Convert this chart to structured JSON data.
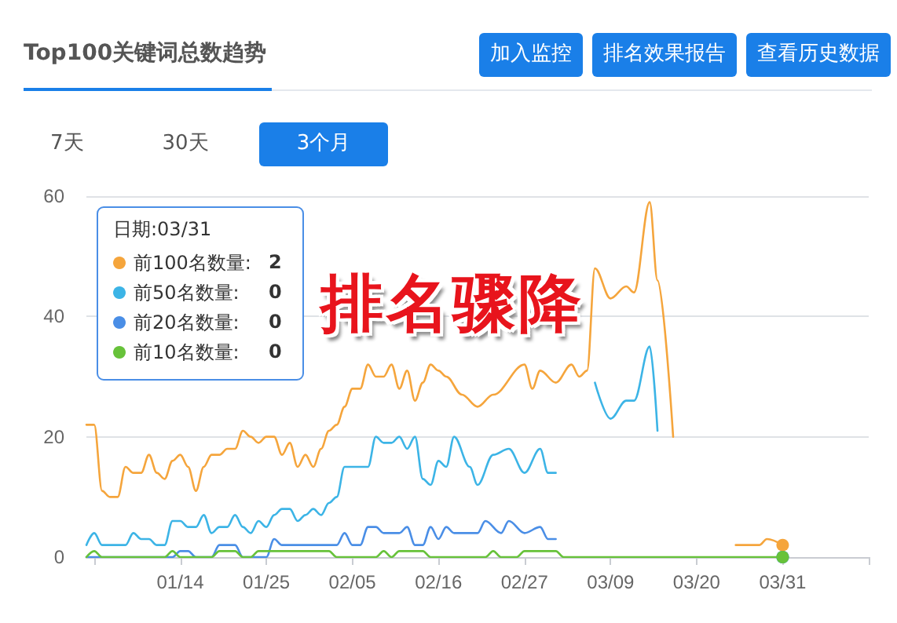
{
  "chart_data": {
    "type": "line",
    "title": "Top100关键词总数趋势",
    "legend_title": "日期:03/31",
    "annotations": [
      "加入监控",
      "排名效果报告",
      "查看历史数据",
      "7天",
      "30天",
      "3个月",
      "排名骤降",
      "2",
      "0",
      "0",
      "0"
    ],
    "xlim": [
      "--01-02",
      "--04-11"
    ],
    "xticks": [
      {
        "value": "--01-03",
        "label": null
      },
      {
        "value": "--01-14",
        "label": "01/14"
      },
      {
        "value": "--01-25",
        "label": "01/25"
      },
      {
        "value": "--02-05",
        "label": "02/05"
      },
      {
        "value": "--02-16",
        "label": "02/16"
      },
      {
        "value": "--02-27",
        "label": "02/27"
      },
      {
        "value": "--03-09",
        "label": "03/09"
      },
      {
        "value": "--03-20",
        "label": "03/20"
      },
      {
        "value": "--03-31",
        "label": "03/31"
      },
      {
        "value": "--04-11",
        "label": null
      }
    ],
    "ylim": [
      0,
      60
    ],
    "yticks": [
      0,
      20,
      40,
      60
    ],
    "grid": "y",
    "legend": "top left",
    "series": [
      {
        "name": "前100名数量:",
        "color": "#f5a53c",
        "x": [
          "--01-02",
          "--01-03",
          "--01-04",
          "--01-05",
          "--01-06",
          "--01-07",
          "--01-08",
          "--01-09",
          "--01-10",
          "--01-11",
          "--01-12",
          "--01-13",
          "--01-14",
          "--01-15",
          "--01-16",
          "--01-17",
          "--01-18",
          "--01-19",
          "--01-20",
          "--01-21",
          "--01-22",
          "--01-23",
          "--01-24",
          "--01-25",
          "--01-26",
          "--01-27",
          "--01-28",
          "--01-29",
          "--01-30",
          "--01-31",
          "--02-01",
          "--02-02",
          "--02-03",
          "--02-04",
          "--02-05",
          "--02-06",
          "--02-07",
          "--02-08",
          "--02-09",
          "--02-10",
          "--02-11",
          "--02-12",
          "--02-13",
          "--02-14",
          "--02-15",
          "--02-16",
          "--02-17",
          "--02-19",
          "--02-21",
          "--02-23",
          "--02-27",
          "--02-28",
          "--02-29",
          "--03-02",
          "--03-04",
          "--03-05",
          "--03-06",
          "--03-07",
          "--03-09",
          "--03-11",
          "--03-12",
          "--03-14",
          "--03-15",
          "--03-17",
          "--03-18",
          "--03-25",
          "--03-28",
          "--03-29",
          "--03-31"
        ],
        "values": [
          22,
          22,
          11,
          10,
          10,
          15,
          14,
          14,
          17,
          14,
          13,
          16,
          17,
          15,
          11,
          15,
          17,
          17,
          18,
          18,
          21,
          20,
          19,
          20,
          20,
          17,
          19,
          15,
          17,
          15,
          18,
          21,
          22,
          25,
          28,
          28,
          32,
          30,
          30,
          32,
          28,
          31,
          26,
          29,
          32,
          31,
          30,
          27,
          25,
          27,
          32,
          28,
          31,
          29,
          32,
          30,
          31,
          48,
          43,
          45,
          44,
          59,
          46,
          20,
          null,
          2,
          2,
          3,
          2
        ]
      },
      {
        "name": "前50名数量:",
        "color": "#3cb4e6",
        "x": [
          "--01-02",
          "--01-03",
          "--01-04",
          "--01-07",
          "--01-08",
          "--01-09",
          "--01-10",
          "--01-11",
          "--01-12",
          "--01-13",
          "--01-14",
          "--01-15",
          "--01-16",
          "--01-17",
          "--01-18",
          "--01-19",
          "--01-20",
          "--01-21",
          "--01-22",
          "--01-23",
          "--01-24",
          "--01-25",
          "--01-26",
          "--01-27",
          "--01-28",
          "--01-29",
          "--01-30",
          "--01-31",
          "--02-01",
          "--02-02",
          "--02-03",
          "--02-04",
          "--02-05",
          "--02-07",
          "--02-08",
          "--02-09",
          "--02-10",
          "--02-11",
          "--02-12",
          "--02-13",
          "--02-14",
          "--02-15",
          "--02-16",
          "--02-17",
          "--02-18",
          "--02-20",
          "--02-21",
          "--02-23",
          "--02-25",
          "--02-27",
          "--02-29",
          "--03-01",
          "--03-02",
          "--03-03",
          "--03-07",
          "--03-09",
          "--03-11",
          "--03-12",
          "--03-14",
          "--03-15",
          "--03-16",
          "--03-31"
        ],
        "values": [
          2,
          4,
          2,
          2,
          4,
          3,
          3,
          2,
          2,
          6,
          6,
          5,
          5,
          7,
          4,
          5,
          5,
          7,
          5,
          4,
          6,
          5,
          7,
          8,
          8,
          6,
          7,
          8,
          7,
          9,
          10,
          15,
          15,
          15,
          20,
          19,
          19,
          20,
          18,
          20,
          13,
          12,
          16,
          15,
          20,
          15,
          12,
          17,
          18,
          14,
          18,
          14,
          14,
          null,
          29,
          23,
          26,
          26,
          35,
          21,
          null,
          0
        ]
      },
      {
        "name": "前20名数量:",
        "color": "#4a8ee6",
        "x": [
          "--01-02",
          "--01-13",
          "--01-14",
          "--01-15",
          "--01-16",
          "--01-18",
          "--01-19",
          "--01-20",
          "--01-21",
          "--01-22",
          "--01-25",
          "--01-26",
          "--01-27",
          "--02-03",
          "--02-04",
          "--02-05",
          "--02-06",
          "--02-07",
          "--02-08",
          "--02-09",
          "--02-11",
          "--02-12",
          "--02-13",
          "--02-14",
          "--02-15",
          "--02-16",
          "--02-17",
          "--02-18",
          "--02-21",
          "--02-22",
          "--02-24",
          "--02-25",
          "--02-27",
          "--02-29",
          "--03-01",
          "--03-02",
          "--03-03",
          "--03-31"
        ],
        "values": [
          0,
          0,
          1,
          1,
          0,
          0,
          2,
          2,
          2,
          0,
          0,
          3,
          2,
          2,
          4,
          2,
          2,
          5,
          5,
          4,
          4,
          5,
          2,
          2,
          5,
          3,
          5,
          4,
          4,
          6,
          4,
          6,
          4,
          5,
          3,
          3,
          null,
          0
        ]
      },
      {
        "name": "前10名数量:",
        "color": "#67c23a",
        "x": [
          "--01-02",
          "--01-03",
          "--01-04",
          "--01-12",
          "--01-13",
          "--01-14",
          "--01-18",
          "--01-19",
          "--01-21",
          "--01-22",
          "--01-23",
          "--01-24",
          "--02-02",
          "--02-03",
          "--02-08",
          "--02-09",
          "--02-10",
          "--02-11",
          "--02-12",
          "--02-14",
          "--02-15",
          "--02-22",
          "--02-23",
          "--02-24",
          "--02-26",
          "--02-27",
          "--03-02",
          "--03-03",
          "--03-31"
        ],
        "values": [
          0,
          1,
          0,
          0,
          1,
          0,
          0,
          1,
          1,
          0,
          0,
          1,
          1,
          0,
          0,
          1,
          0,
          1,
          1,
          1,
          0,
          0,
          1,
          0,
          0,
          1,
          1,
          0,
          0
        ]
      }
    ]
  }
}
